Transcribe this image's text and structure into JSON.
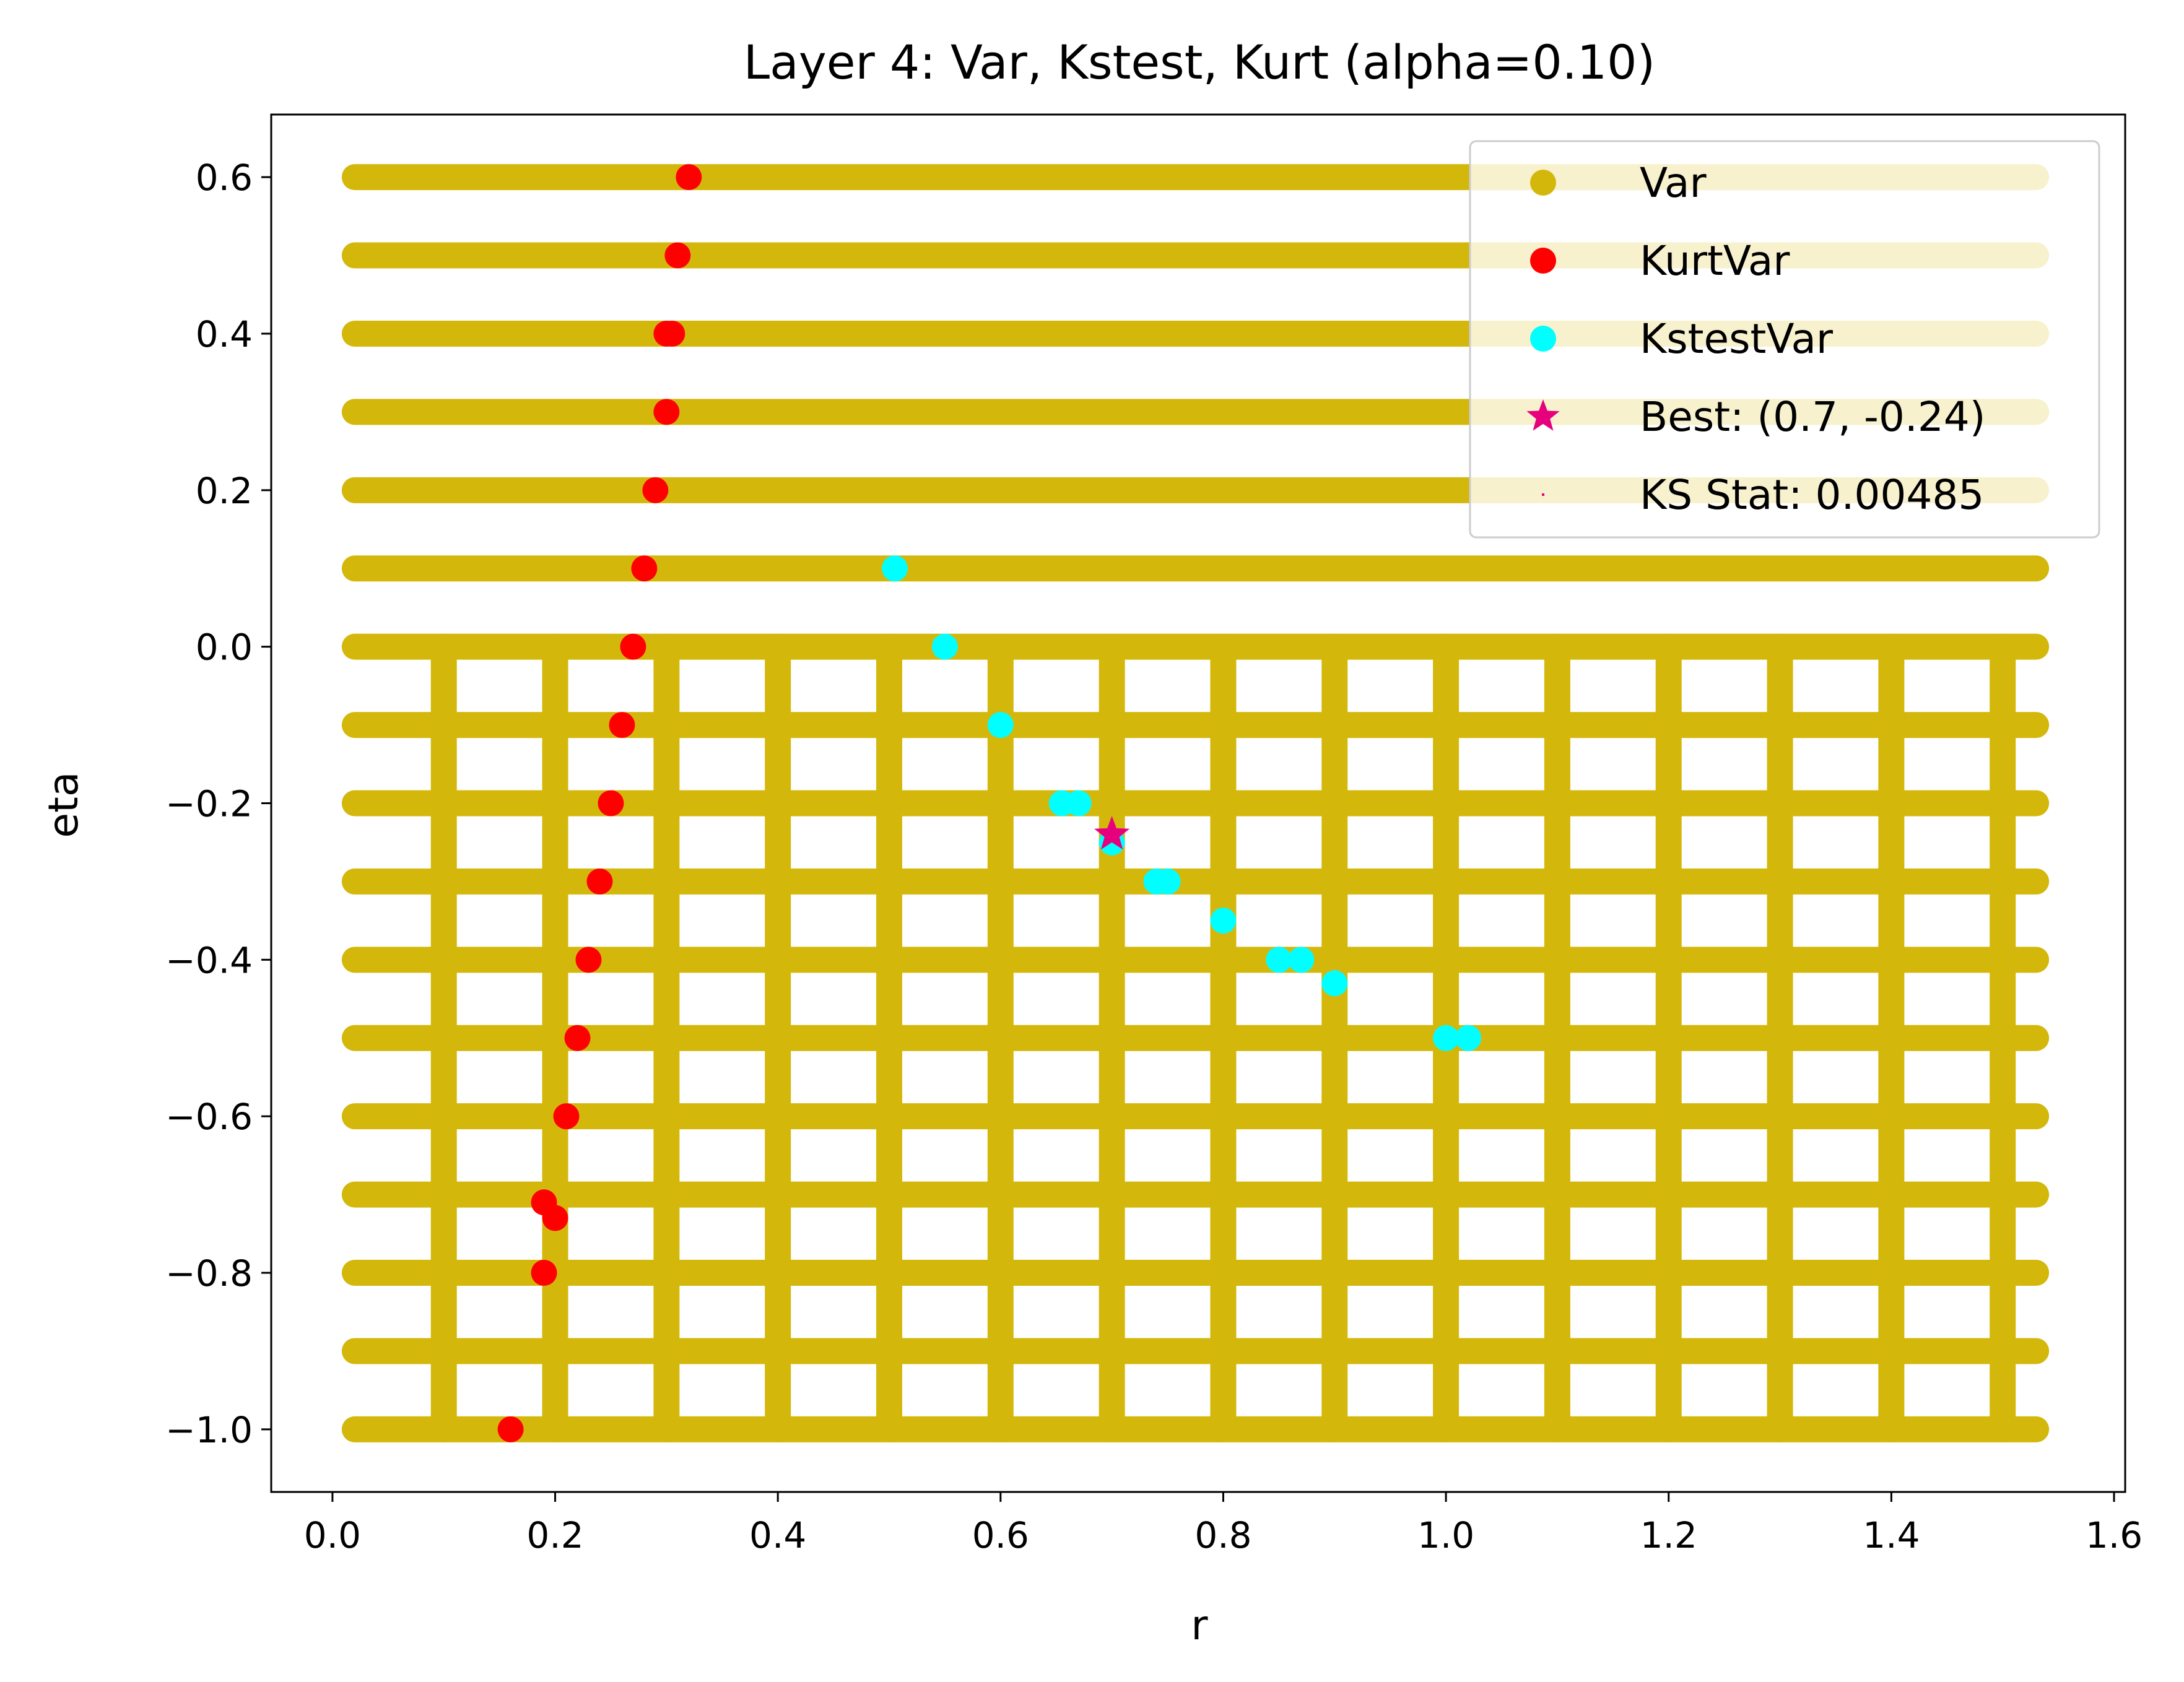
{
  "chart_data": {
    "type": "scatter",
    "title": "Layer 4: Var, Kstest, Kurt (alpha=0.10)",
    "xlabel": "r",
    "ylabel": "eta",
    "xlim": [
      -0.055,
      1.61
    ],
    "ylim": [
      -1.08,
      0.68
    ],
    "xticks": [
      0.0,
      0.2,
      0.4,
      0.6,
      0.8,
      1.0,
      1.2,
      1.4,
      1.6
    ],
    "xtick_labels": [
      "0.0",
      "0.2",
      "0.4",
      "0.6",
      "0.8",
      "1.0",
      "1.2",
      "1.4",
      "1.6"
    ],
    "yticks": [
      0.6,
      0.4,
      0.2,
      0.0,
      -0.2,
      -0.4,
      -0.6,
      -0.8,
      -1.0
    ],
    "ytick_labels": [
      "0.6",
      "0.4",
      "0.2",
      "0.0",
      "−0.2",
      "−0.4",
      "−0.6",
      "−0.8",
      "−1.0"
    ],
    "grid": false,
    "legend_position": "top-right",
    "var_grid": {
      "color": "#D4B70B",
      "r_range": [
        0.02,
        1.53
      ],
      "eta_levels": [
        0.6,
        0.5,
        0.4,
        0.3,
        0.2,
        0.1,
        0.0,
        -0.1,
        -0.2,
        -0.3,
        -0.4,
        -0.5,
        -0.6,
        -0.7,
        -0.8,
        -0.9,
        -1.0
      ],
      "r_columns": [
        0.1,
        0.2,
        0.3,
        0.4,
        0.5,
        0.6,
        0.7,
        0.8,
        0.9,
        1.0,
        1.1,
        1.2,
        1.3,
        1.4,
        1.5
      ],
      "column_eta_range": [
        -1.0,
        0.0
      ]
    },
    "series": [
      {
        "name": "KurtVar",
        "color": "#FF0000",
        "points": [
          [
            0.32,
            0.6
          ],
          [
            0.31,
            0.5
          ],
          [
            0.3,
            0.4
          ],
          [
            0.305,
            0.4
          ],
          [
            0.3,
            0.3
          ],
          [
            0.29,
            0.2
          ],
          [
            0.28,
            0.1
          ],
          [
            0.27,
            0.0
          ],
          [
            0.26,
            -0.1
          ],
          [
            0.25,
            -0.2
          ],
          [
            0.24,
            -0.3
          ],
          [
            0.23,
            -0.4
          ],
          [
            0.22,
            -0.5
          ],
          [
            0.21,
            -0.6
          ],
          [
            0.19,
            -0.71
          ],
          [
            0.2,
            -0.73
          ],
          [
            0.19,
            -0.8
          ],
          [
            0.16,
            -1.0
          ]
        ]
      },
      {
        "name": "KstestVar",
        "color": "#00FFFF",
        "points": [
          [
            0.505,
            0.1
          ],
          [
            0.55,
            0.0
          ],
          [
            0.6,
            -0.1
          ],
          [
            0.655,
            -0.2
          ],
          [
            0.67,
            -0.2
          ],
          [
            0.7,
            -0.25
          ],
          [
            0.74,
            -0.3
          ],
          [
            0.75,
            -0.3
          ],
          [
            0.8,
            -0.35
          ],
          [
            0.85,
            -0.4
          ],
          [
            0.87,
            -0.4
          ],
          [
            0.9,
            -0.43
          ],
          [
            1.0,
            -0.5
          ],
          [
            1.02,
            -0.5
          ]
        ]
      }
    ],
    "best": {
      "r": 0.7,
      "eta": -0.24,
      "color": "#E6007E"
    },
    "legend": [
      {
        "label": "Var",
        "color": "#D4B70B",
        "marker": "dot"
      },
      {
        "label": "KurtVar",
        "color": "#FF0000",
        "marker": "dot"
      },
      {
        "label": "KstestVar",
        "color": "#00FFFF",
        "marker": "dot"
      },
      {
        "label": "Best: (0.7, -0.24)",
        "color": "#E6007E",
        "marker": "star"
      },
      {
        "label": "KS Stat: 0.00485",
        "color": "#E6007E",
        "marker": "pixel"
      }
    ]
  }
}
